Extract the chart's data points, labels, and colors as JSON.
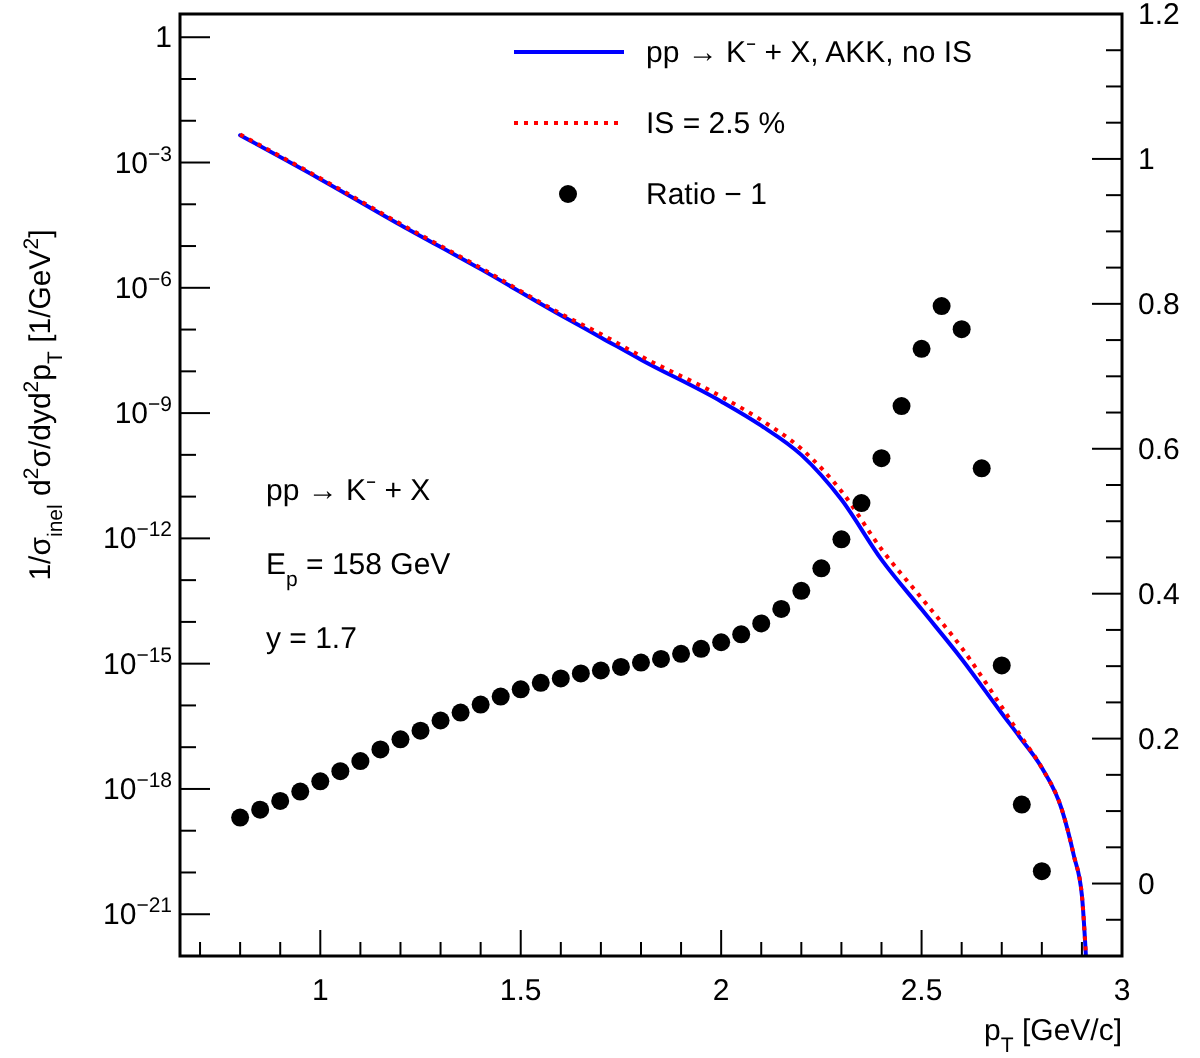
{
  "chart_data": {
    "type": "line",
    "xlabel": "p$_{T}$ [GeV/c]",
    "ylabel": "1/σ$_{inel}$ d$^{2}$σ/dyd$^{2}$p$_{T}$ [1/GeV$^{2}$]",
    "annotations": [
      "pp → K⁻ + X",
      "E$_{p}$ = 158 GeV",
      "y = 1.7"
    ],
    "log": "y",
    "legend": "top right",
    "grid": false,
    "xlim": [
      0.65,
      3
    ],
    "xticks": [
      {
        "value": 0.7,
        "label": null
      },
      {
        "value": 0.8,
        "label": null
      },
      {
        "value": 0.9,
        "label": null
      },
      1,
      {
        "value": 1.1,
        "label": null
      },
      {
        "value": 1.2,
        "label": null
      },
      {
        "value": 1.3,
        "label": null
      },
      {
        "value": 1.4,
        "label": null
      },
      1.5,
      {
        "value": 1.6,
        "label": null
      },
      {
        "value": 1.7,
        "label": null
      },
      {
        "value": 1.8,
        "label": null
      },
      {
        "value": 1.9,
        "label": null
      },
      2,
      {
        "value": 2.1,
        "label": null
      },
      {
        "value": 2.2,
        "label": null
      },
      {
        "value": 2.3,
        "label": null
      },
      {
        "value": 2.4,
        "label": null
      },
      2.5,
      {
        "value": 2.6,
        "label": null
      },
      {
        "value": 2.7,
        "label": null
      },
      {
        "value": 2.8,
        "label": null
      },
      {
        "value": 2.9,
        "label": null
      },
      3
    ],
    "ylim": [
      1e-22,
      3.6
    ],
    "yticks": [
      1,
      {
        "value": 0.1,
        "label": null
      },
      {
        "value": 0.01,
        "label": null
      },
      {
        "value": 0.001,
        "label": "10$^{−3}$"
      },
      {
        "value": 0.0001,
        "label": null
      },
      {
        "value": 1e-05,
        "label": null
      },
      {
        "value": 1e-06,
        "label": "10$^{−6}$"
      },
      {
        "value": 1e-07,
        "label": null
      },
      {
        "value": 1e-08,
        "label": null
      },
      {
        "value": 1e-09,
        "label": "10$^{−9}$"
      },
      {
        "value": 1e-10,
        "label": null
      },
      {
        "value": 1e-11,
        "label": null
      },
      {
        "value": 1e-12,
        "label": "10$^{−12}$"
      },
      {
        "value": 1e-13,
        "label": null
      },
      {
        "value": 1e-14,
        "label": null
      },
      {
        "value": 1e-15,
        "label": "10$^{−15}$"
      },
      {
        "value": 1e-16,
        "label": null
      },
      {
        "value": 1e-17,
        "label": null
      },
      {
        "value": 1e-18,
        "label": "10$^{−18}$"
      },
      {
        "value": 1e-19,
        "label": null
      },
      {
        "value": 1e-20,
        "label": null
      },
      {
        "value": 1e-21,
        "label": "10$^{−21}$"
      }
    ],
    "y2lim": [
      -0.1,
      1.2
    ],
    "y2ticks": [
      {
        "value": -0.05,
        "label": null
      },
      0,
      {
        "value": 0.05,
        "label": null
      },
      {
        "value": 0.1,
        "label": null
      },
      {
        "value": 0.15,
        "label": null
      },
      0.2,
      {
        "value": 0.25,
        "label": null
      },
      {
        "value": 0.3,
        "label": null
      },
      {
        "value": 0.35,
        "label": null
      },
      0.4,
      {
        "value": 0.45,
        "label": null
      },
      {
        "value": 0.5,
        "label": null
      },
      {
        "value": 0.55,
        "label": null
      },
      0.6,
      {
        "value": 0.65,
        "label": null
      },
      {
        "value": 0.7,
        "label": null
      },
      {
        "value": 0.75,
        "label": null
      },
      0.8,
      {
        "value": 0.85,
        "label": null
      },
      {
        "value": 0.9,
        "label": null
      },
      {
        "value": 0.95,
        "label": null
      },
      1,
      {
        "value": 1.05,
        "label": null
      },
      {
        "value": 1.1,
        "label": null
      },
      {
        "value": 1.15,
        "label": null
      },
      1.2
    ],
    "series": [
      {
        "name": "pp → K⁻ + X, AKK, no IS",
        "color": "#0000ff",
        "line_style": "solid",
        "x": [
          0.8,
          1.0,
          1.2,
          1.4,
          1.6,
          1.7,
          1.8,
          2.0,
          2.1,
          2.2,
          2.3,
          2.4,
          2.5,
          2.6,
          2.7,
          2.75,
          2.8,
          2.85,
          2.88,
          2.9,
          2.91
        ],
        "values": [
          0.0045,
          0.0004,
          3.2e-05,
          2.8e-06,
          2.2e-07,
          6.5e-08,
          1.9e-08,
          1.9e-09,
          5e-10,
          1e-10,
          8.5e-12,
          3.1e-13,
          2e-14,
          1.3e-15,
          6.5e-17,
          1.5e-17,
          3.2e-18,
          3.2e-19,
          2.5e-20,
          2.8e-21,
          1e-22
        ]
      },
      {
        "name": "IS = 2.5 %",
        "color": "#ff0000",
        "line_style": "dotted",
        "x": [
          0.8,
          1.0,
          1.2,
          1.4,
          1.6,
          1.7,
          1.8,
          2.0,
          2.1,
          2.2,
          2.3,
          2.4,
          2.5,
          2.6,
          2.7,
          2.75,
          2.8,
          2.85,
          2.88,
          2.9,
          2.91
        ],
        "values": [
          0.0047,
          0.00042,
          3.4e-05,
          3e-06,
          2.4e-07,
          7.8e-08,
          2.3e-08,
          2.5e-09,
          6.8e-10,
          1.4e-10,
          1.35e-11,
          5.5e-13,
          3.7e-14,
          2.4e-15,
          9.2e-17,
          1.7e-17,
          3.2e-18,
          3.2e-19,
          2.5e-20,
          2.8e-21,
          1e-22
        ]
      },
      {
        "name": "Ratio − 1",
        "type": "scatter",
        "axis": "y2",
        "color": "#000000",
        "marker": "circle",
        "x": [
          0.8,
          0.85,
          0.9,
          0.95,
          1.0,
          1.05,
          1.1,
          1.15,
          1.2,
          1.25,
          1.3,
          1.35,
          1.4,
          1.45,
          1.5,
          1.55,
          1.6,
          1.65,
          1.7,
          1.75,
          1.8,
          1.85,
          1.9,
          1.95,
          2.0,
          2.05,
          2.1,
          2.15,
          2.2,
          2.25,
          2.3,
          2.35,
          2.4,
          2.45,
          2.5,
          2.55,
          2.6,
          2.65,
          2.7,
          2.75,
          2.8
        ],
        "values": [
          0.091,
          0.102,
          0.114,
          0.127,
          0.141,
          0.155,
          0.169,
          0.185,
          0.199,
          0.211,
          0.225,
          0.236,
          0.247,
          0.258,
          0.268,
          0.277,
          0.283,
          0.29,
          0.294,
          0.299,
          0.305,
          0.31,
          0.317,
          0.324,
          0.333,
          0.344,
          0.359,
          0.379,
          0.404,
          0.435,
          0.475,
          0.525,
          0.587,
          0.659,
          0.738,
          0.797,
          0.765,
          0.573,
          0.301,
          0.109,
          0.017
        ]
      }
    ]
  }
}
